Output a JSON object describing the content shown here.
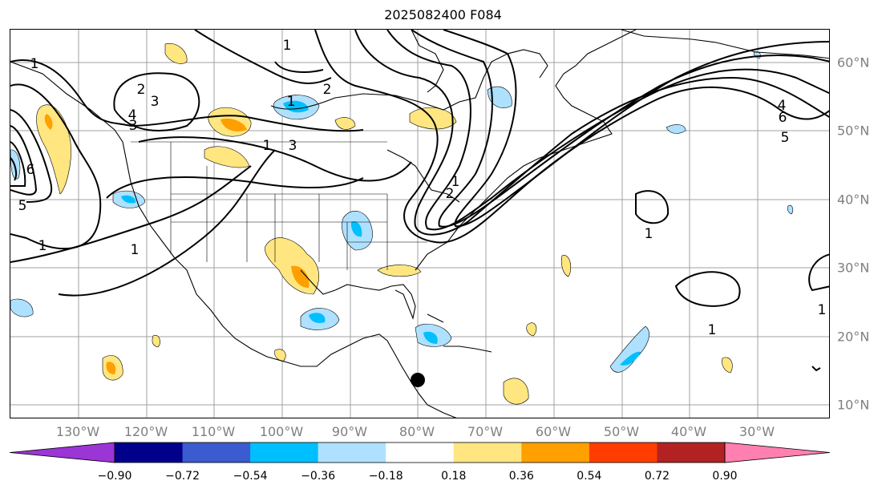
{
  "title": "2025082400 F084",
  "map": {
    "lon_labels": [
      "130°W",
      "120°W",
      "110°W",
      "100°W",
      "90°W",
      "80°W",
      "70°W",
      "60°W",
      "50°W",
      "40°W",
      "30°W"
    ],
    "lat_labels": [
      "60°N",
      "50°N",
      "40°N",
      "30°N",
      "20°N",
      "10°N"
    ],
    "contour_labels": [
      "1",
      "2",
      "3",
      "4",
      "5",
      "6",
      "1",
      "2",
      "3",
      "1",
      "1",
      "3",
      "1",
      "6",
      "5",
      "4",
      "2",
      "1",
      "1",
      "1",
      "1",
      "1"
    ],
    "marker_color": "#000000",
    "grid_color": "#a0a0a0"
  },
  "colorbar": {
    "tick_labels": [
      "−0.90",
      "−0.72",
      "−0.54",
      "−0.36",
      "−0.18",
      "0.18",
      "0.36",
      "0.54",
      "0.72",
      "0.90"
    ],
    "colors": [
      "#9b35d6",
      "#00008b",
      "#3b5bd1",
      "#00bfff",
      "#aee1ff",
      "#ffffff",
      "#ffe680",
      "#ff9f00",
      "#ff3d00",
      "#b22222",
      "#ff80b0"
    ],
    "under_color": "#9b35d6",
    "over_color": "#ff80b0"
  }
}
